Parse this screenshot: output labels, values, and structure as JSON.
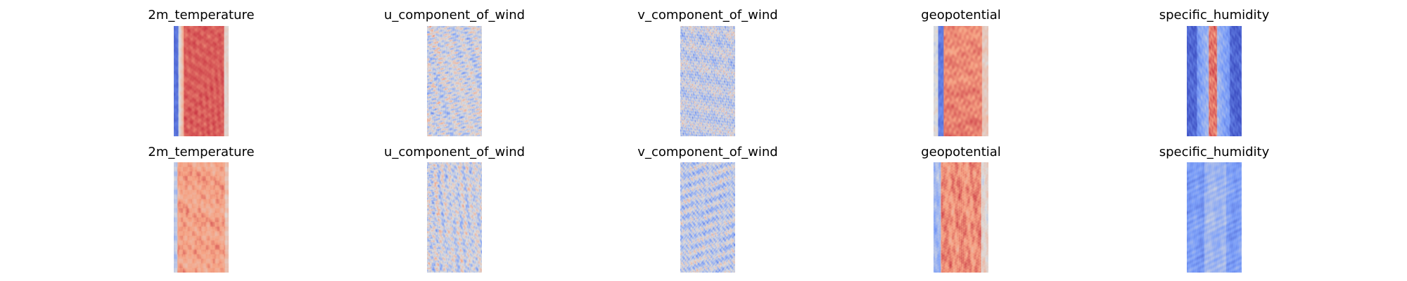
{
  "chart_data": [
    {
      "type": "heatmap",
      "title": "2m_temperature",
      "colormap": "coolwarm",
      "pattern": "temp",
      "seed": 11,
      "row": 1,
      "column": 1
    },
    {
      "type": "heatmap",
      "title": "u_component_of_wind",
      "colormap": "coolwarm",
      "pattern": "wind_u",
      "seed": 23,
      "row": 1,
      "column": 2
    },
    {
      "type": "heatmap",
      "title": "v_component_of_wind",
      "colormap": "coolwarm",
      "pattern": "wind_v",
      "seed": 37,
      "row": 1,
      "column": 3
    },
    {
      "type": "heatmap",
      "title": "geopotential",
      "colormap": "coolwarm",
      "pattern": "geo",
      "seed": 41,
      "row": 1,
      "column": 4
    },
    {
      "type": "heatmap",
      "title": "specific_humidity",
      "colormap": "coolwarm",
      "pattern": "humid",
      "seed": 53,
      "row": 1,
      "column": 5
    },
    {
      "type": "heatmap",
      "title": "2m_temperature",
      "colormap": "coolwarm",
      "pattern": "temp_pred",
      "seed": 61,
      "row": 2,
      "column": 1
    },
    {
      "type": "heatmap",
      "title": "u_component_of_wind",
      "colormap": "coolwarm",
      "pattern": "wind_u",
      "seed": 71,
      "row": 2,
      "column": 2
    },
    {
      "type": "heatmap",
      "title": "v_component_of_wind",
      "colormap": "coolwarm",
      "pattern": "wind_v",
      "seed": 83,
      "row": 2,
      "column": 3
    },
    {
      "type": "heatmap",
      "title": "geopotential",
      "colormap": "coolwarm",
      "pattern": "geo_pred",
      "seed": 97,
      "row": 2,
      "column": 4
    },
    {
      "type": "heatmap",
      "title": "specific_humidity",
      "colormap": "coolwarm",
      "pattern": "humid_pred",
      "seed": 103,
      "row": 2,
      "column": 5
    }
  ]
}
